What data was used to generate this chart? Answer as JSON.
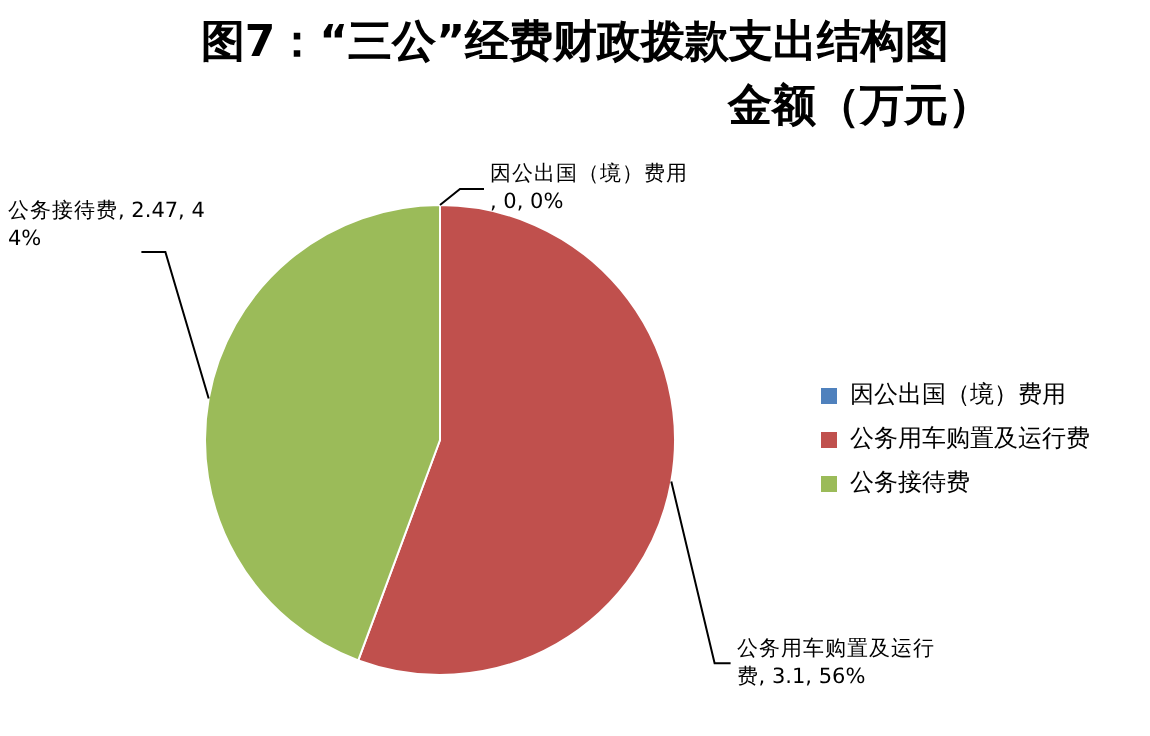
{
  "chart_data": {
    "type": "pie",
    "title": "图7：“三公”经费财政拨款支出结构图",
    "subtitle": "金额（万元）",
    "categories": [
      "因公出国（境）费用",
      "公务用车购置及运行费",
      "公务接待费"
    ],
    "values": [
      0,
      3.1,
      2.47
    ],
    "colors": [
      "#4f81bd",
      "#c0504d",
      "#9bbb59"
    ],
    "value_labels": [
      "因公出国（境）费用, 0, 0%",
      "公务用车购置及运行费, 3.1, 56%",
      "公务接待费, 2.47, 44%"
    ],
    "legend": "right"
  }
}
